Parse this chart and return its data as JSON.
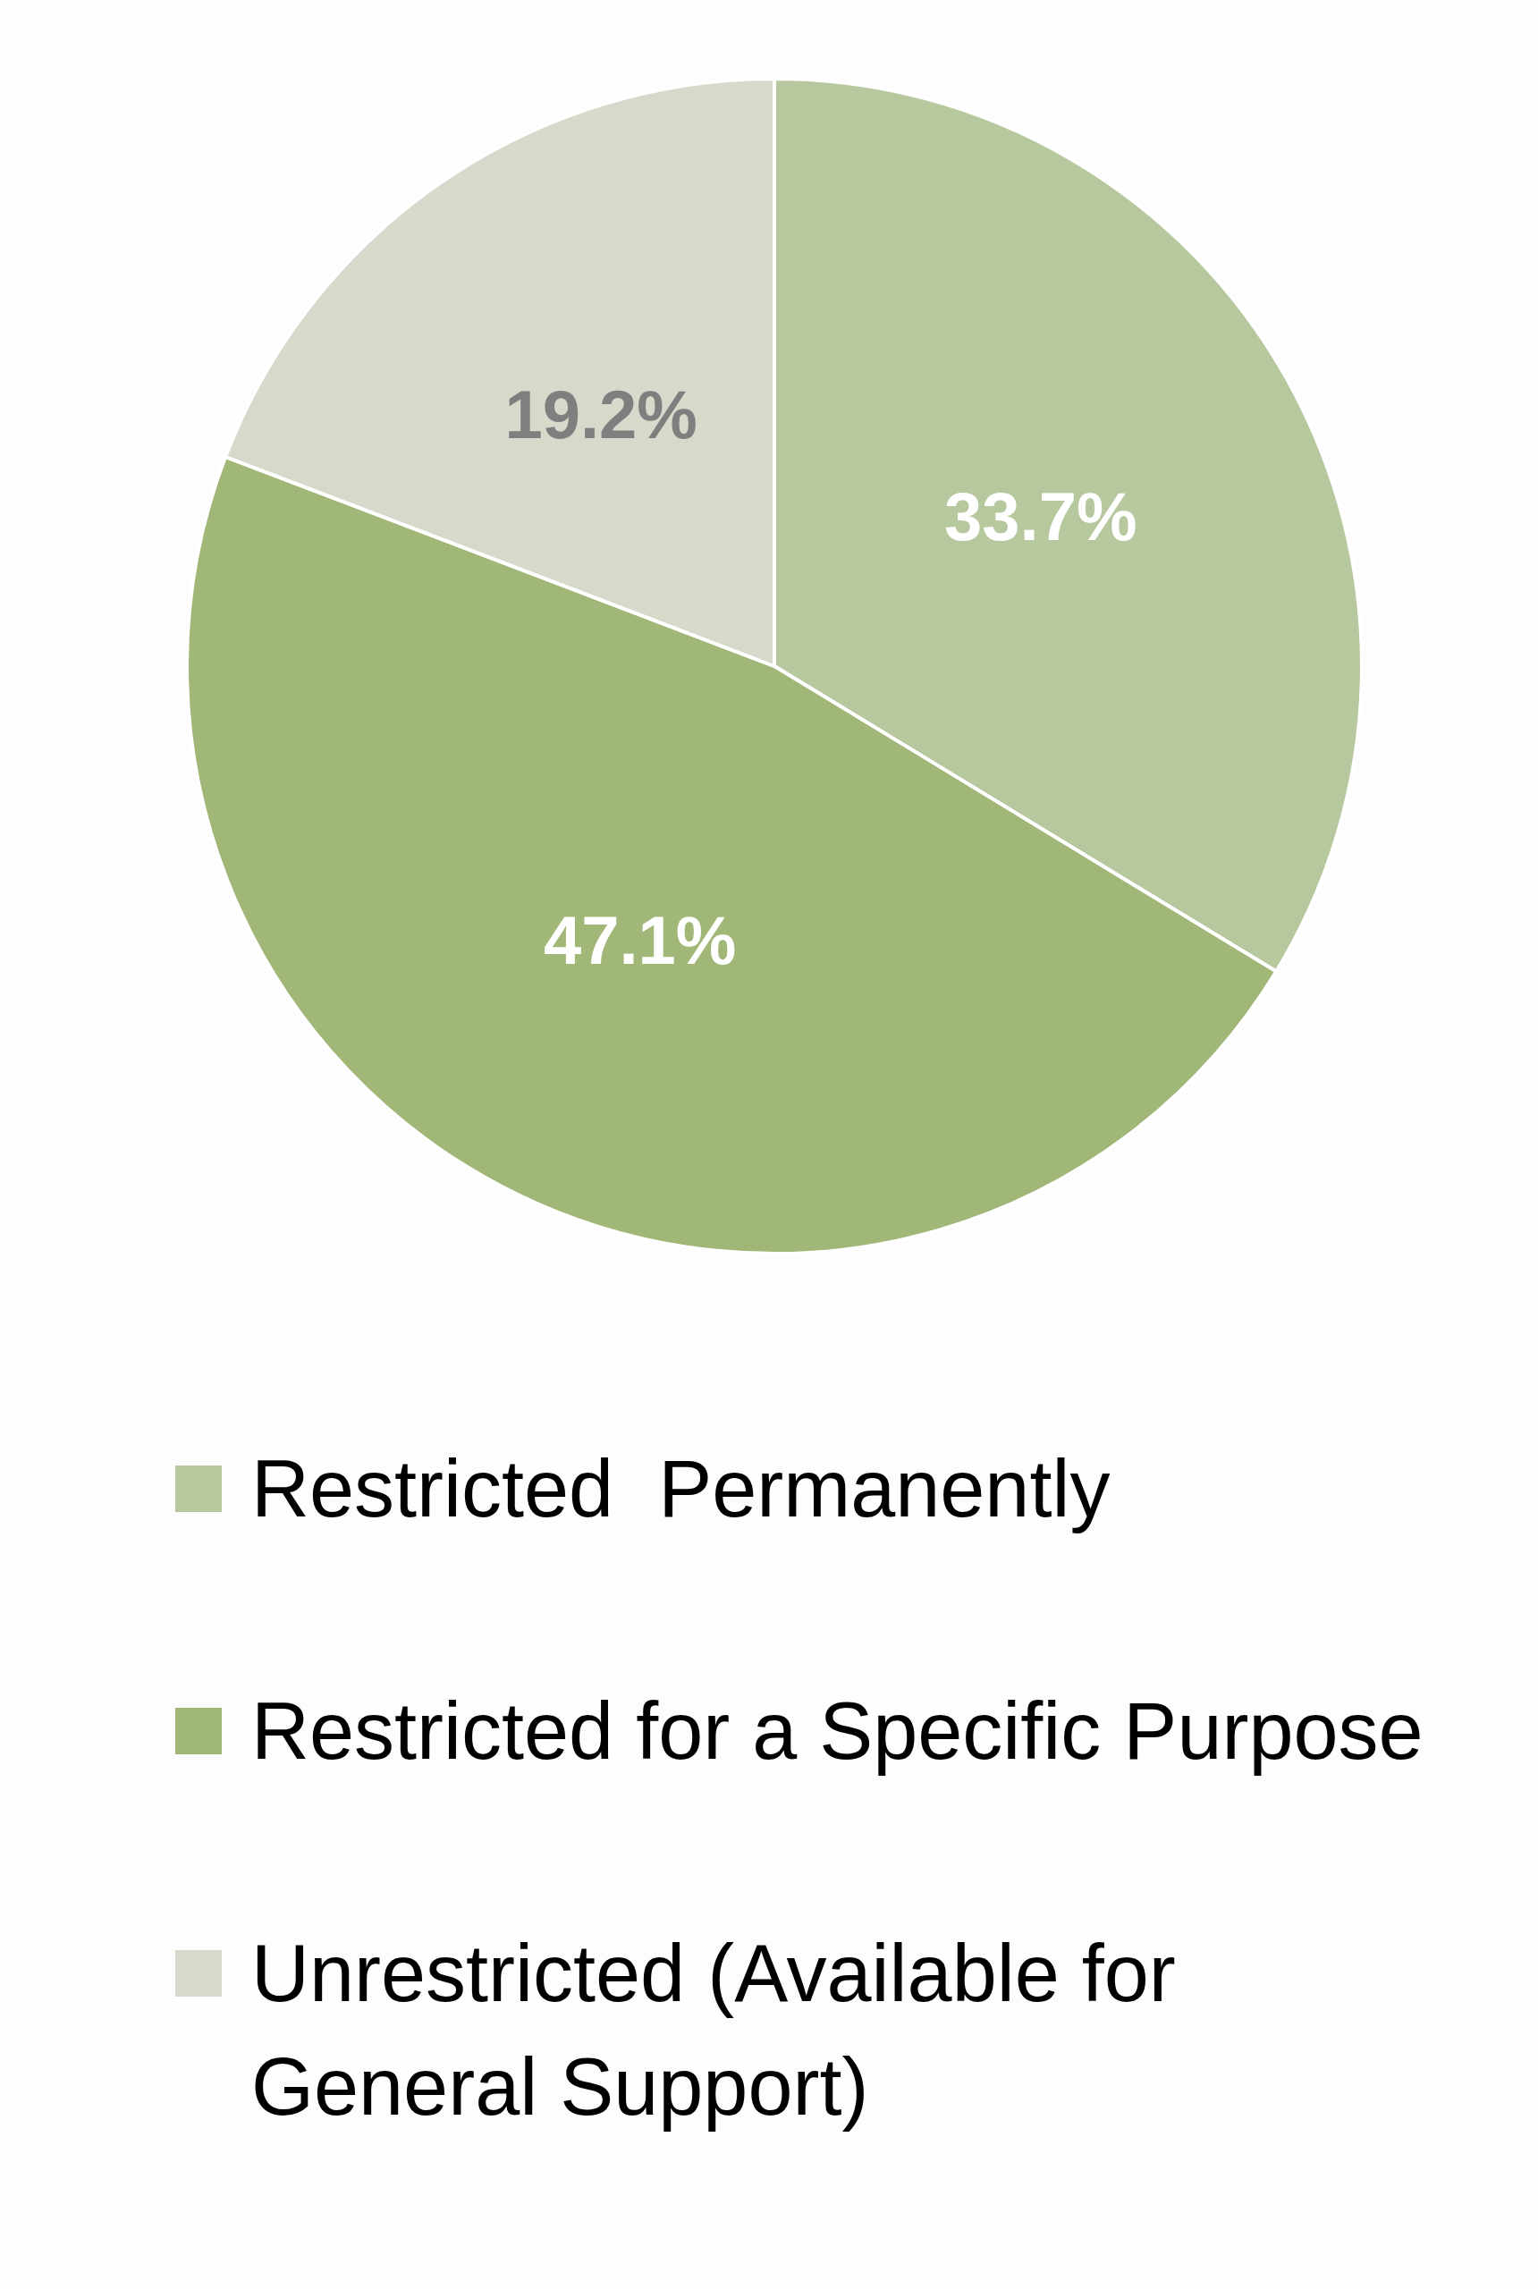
{
  "chart_data": {
    "type": "pie",
    "categories": [
      "Restricted  Permanently",
      "Restricted for a Specific Purpose",
      "Unrestricted (Available for General Support)"
    ],
    "values": [
      33.7,
      47.1,
      19.2
    ],
    "colors": [
      "#b8c89e",
      "#a1b777",
      "#d5dacb"
    ],
    "value_labels": [
      "33.7%",
      "47.1%",
      "19.2%"
    ],
    "legend": "bottom"
  }
}
